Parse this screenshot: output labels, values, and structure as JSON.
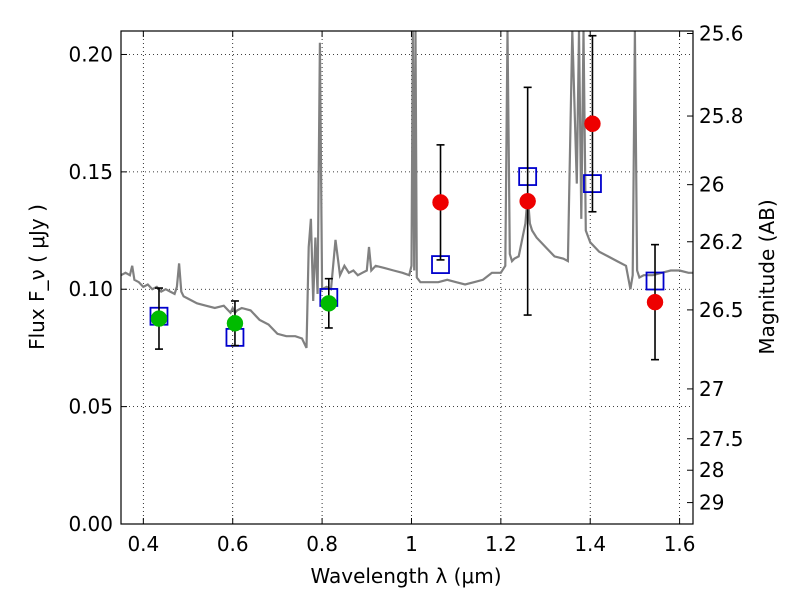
{
  "chart_data": {
    "type": "scatter",
    "xlabel": "Wavelength  λ (μm)",
    "ylabel": "Flux  F_ν  ( μJy )",
    "y2label": "Magnitude (AB)",
    "xlim": [
      0.35,
      1.63
    ],
    "ylim": [
      0.0,
      0.21
    ],
    "grid": true,
    "x_ticks": [
      0.4,
      0.6,
      0.8,
      1.0,
      1.2,
      1.4,
      1.6
    ],
    "x_tick_labels": [
      "0.4",
      "0.6",
      "0.8",
      "1",
      "1.2",
      "1.4",
      "1.6"
    ],
    "y_ticks": [
      0.0,
      0.05,
      0.1,
      0.15,
      0.2
    ],
    "y_tick_labels": [
      "0.00",
      "0.05",
      "0.10",
      "0.15",
      "0.20"
    ],
    "y2_ticks": [
      {
        "mag": 25.6,
        "label": "25.6"
      },
      {
        "mag": 25.8,
        "label": "25.8"
      },
      {
        "mag": 26.0,
        "label": "26"
      },
      {
        "mag": 26.2,
        "label": "26.2"
      },
      {
        "mag": 26.5,
        "label": "26.5"
      },
      {
        "mag": 27.0,
        "label": "27"
      },
      {
        "mag": 27.5,
        "label": "27.5"
      },
      {
        "mag": 28.0,
        "label": "28"
      },
      {
        "mag": 29.0,
        "label": "29"
      }
    ],
    "series": [
      {
        "marker": "square",
        "color": "#0000cc",
        "x": [
          0.435,
          0.605,
          0.815,
          1.065,
          1.26,
          1.405,
          1.545
        ],
        "y": [
          0.0885,
          0.0795,
          0.0965,
          0.1105,
          0.148,
          0.145,
          0.1035
        ]
      },
      {
        "marker": "circle",
        "color": "#00bb00",
        "x": [
          0.435,
          0.605,
          0.815
        ],
        "y": [
          0.0875,
          0.0855,
          0.094
        ],
        "yerr": [
          0.013,
          0.0095,
          0.0105
        ]
      },
      {
        "marker": "circle",
        "color": "#ee0000",
        "x": [
          1.065,
          1.26,
          1.405,
          1.545
        ],
        "y": [
          0.137,
          0.1375,
          0.1705,
          0.0945
        ],
        "yerr": [
          0.0245,
          0.0485,
          0.0375,
          0.0245
        ]
      }
    ],
    "spectrum": {
      "color": "#808080",
      "x": [
        0.35,
        0.36,
        0.37,
        0.375,
        0.38,
        0.39,
        0.4,
        0.41,
        0.42,
        0.43,
        0.44,
        0.45,
        0.46,
        0.47,
        0.475,
        0.48,
        0.485,
        0.49,
        0.5,
        0.52,
        0.54,
        0.56,
        0.58,
        0.595,
        0.6,
        0.605,
        0.61,
        0.62,
        0.64,
        0.66,
        0.68,
        0.7,
        0.72,
        0.74,
        0.755,
        0.765,
        0.77,
        0.775,
        0.78,
        0.785,
        0.79,
        0.795,
        0.8,
        0.81,
        0.82,
        0.83,
        0.84,
        0.85,
        0.86,
        0.87,
        0.88,
        0.89,
        0.9,
        0.905,
        0.91,
        0.92,
        0.94,
        0.96,
        0.98,
        0.995,
        1.0,
        1.003,
        1.006,
        1.009,
        1.012,
        1.02,
        1.04,
        1.06,
        1.08,
        1.1,
        1.12,
        1.14,
        1.16,
        1.18,
        1.2,
        1.21,
        1.215,
        1.22,
        1.225,
        1.23,
        1.24,
        1.255,
        1.26,
        1.265,
        1.27,
        1.28,
        1.3,
        1.32,
        1.34,
        1.35,
        1.36,
        1.37,
        1.375,
        1.38,
        1.385,
        1.39,
        1.4,
        1.42,
        1.44,
        1.46,
        1.48,
        1.49,
        1.495,
        1.5,
        1.505,
        1.51,
        1.52,
        1.54,
        1.56,
        1.58,
        1.6,
        1.62,
        1.63
      ],
      "y": [
        0.106,
        0.107,
        0.106,
        0.11,
        0.104,
        0.103,
        0.101,
        0.102,
        0.1,
        0.101,
        0.099,
        0.1,
        0.099,
        0.098,
        0.101,
        0.111,
        0.099,
        0.097,
        0.096,
        0.094,
        0.093,
        0.092,
        0.093,
        0.09,
        0.092,
        0.09,
        0.091,
        0.092,
        0.091,
        0.087,
        0.085,
        0.081,
        0.08,
        0.08,
        0.079,
        0.075,
        0.118,
        0.13,
        0.095,
        0.122,
        0.098,
        0.205,
        0.1,
        0.101,
        0.1,
        0.121,
        0.106,
        0.11,
        0.107,
        0.108,
        0.106,
        0.107,
        0.108,
        0.118,
        0.108,
        0.11,
        0.109,
        0.108,
        0.107,
        0.106,
        0.11,
        0.21,
        0.108,
        0.21,
        0.105,
        0.103,
        0.103,
        0.103,
        0.104,
        0.103,
        0.102,
        0.103,
        0.104,
        0.107,
        0.107,
        0.11,
        0.21,
        0.115,
        0.112,
        0.113,
        0.114,
        0.128,
        0.14,
        0.128,
        0.125,
        0.122,
        0.118,
        0.114,
        0.113,
        0.112,
        0.21,
        0.145,
        0.21,
        0.13,
        0.21,
        0.125,
        0.12,
        0.116,
        0.114,
        0.112,
        0.11,
        0.1,
        0.106,
        0.21,
        0.108,
        0.105,
        0.106,
        0.106,
        0.107,
        0.108,
        0.108,
        0.107,
        0.107
      ]
    }
  }
}
